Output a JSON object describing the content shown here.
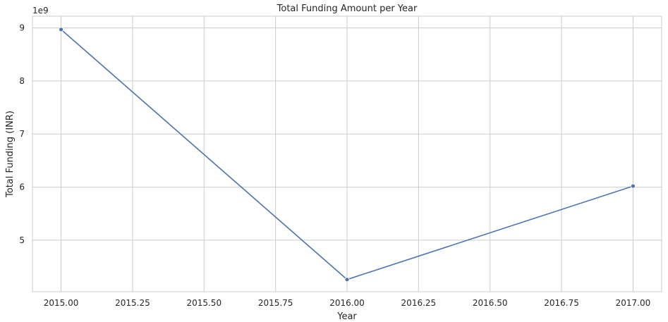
{
  "chart_data": {
    "type": "line",
    "title": "Total Funding Amount per Year",
    "xlabel": "Year",
    "ylabel": "Total Funding (INR)",
    "y_offset_label": "1e9",
    "x_ticks": [
      "2015.00",
      "2015.25",
      "2015.50",
      "2015.75",
      "2016.00",
      "2016.25",
      "2016.50",
      "2016.75",
      "2017.00"
    ],
    "y_ticks": [
      "5",
      "6",
      "7",
      "8",
      "9"
    ],
    "xlim": [
      2014.9,
      2017.1
    ],
    "ylim": [
      4.03,
      9.22
    ],
    "grid": true,
    "series": [
      {
        "color": "#4c72b0",
        "marker": "circle",
        "x": [
          2015,
          2016,
          2017
        ],
        "y": [
          8.97,
          4.26,
          6.02
        ]
      }
    ]
  }
}
